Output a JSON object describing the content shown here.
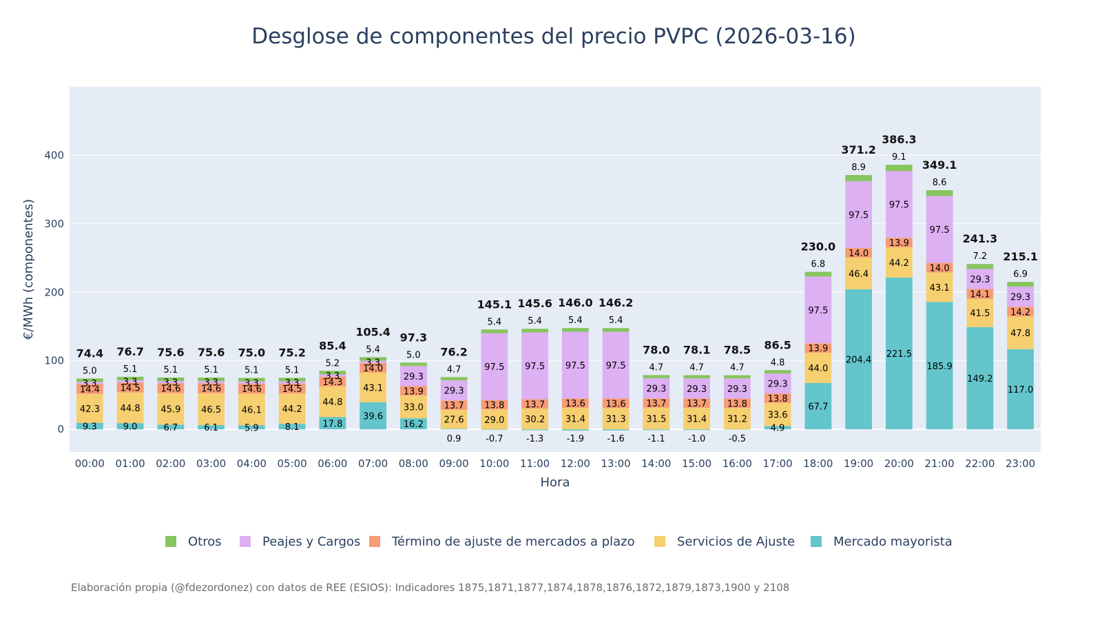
{
  "chart_data": {
    "type": "bar",
    "stacked": true,
    "title": "Desglose de componentes del precio PVPC (2026-03-16)",
    "xlabel": "Hora",
    "ylabel": "€/MWh (componentes)",
    "ylim": [
      -33,
      500
    ],
    "yticks": [
      0,
      100,
      200,
      300,
      400
    ],
    "ytick_labels": [
      "0",
      "100",
      "200",
      "300",
      "400"
    ],
    "categories": [
      "00:00",
      "01:00",
      "02:00",
      "03:00",
      "04:00",
      "05:00",
      "06:00",
      "07:00",
      "08:00",
      "09:00",
      "10:00",
      "11:00",
      "12:00",
      "13:00",
      "14:00",
      "15:00",
      "16:00",
      "17:00",
      "18:00",
      "19:00",
      "20:00",
      "21:00",
      "22:00",
      "23:00"
    ],
    "series": [
      {
        "name": "Mercado mayorista",
        "color": "#64c5cc",
        "values": [
          9.3,
          9.0,
          6.7,
          6.1,
          5.9,
          8.1,
          17.8,
          39.6,
          16.2,
          0.9,
          -0.7,
          -1.3,
          -1.9,
          -1.6,
          -1.1,
          -1.0,
          -0.5,
          4.9,
          67.7,
          204.4,
          221.5,
          185.9,
          149.2,
          117.0
        ]
      },
      {
        "name": "Servicios de Ajuste",
        "color": "#f6cf71",
        "values": [
          42.3,
          44.8,
          45.9,
          46.5,
          46.1,
          44.2,
          44.8,
          43.1,
          33.0,
          27.6,
          29.0,
          30.2,
          31.4,
          31.3,
          31.5,
          31.4,
          31.2,
          33.6,
          44.0,
          46.4,
          44.2,
          43.1,
          41.5,
          47.8
        ]
      },
      {
        "name": "Término de ajuste de mercados a plazo",
        "color": "#f89c74",
        "values": [
          14.4,
          14.5,
          14.6,
          14.6,
          14.6,
          14.5,
          14.3,
          14.0,
          13.9,
          13.7,
          13.8,
          13.7,
          13.6,
          13.6,
          13.7,
          13.7,
          13.8,
          13.8,
          13.9,
          14.0,
          13.9,
          14.0,
          14.1,
          14.2
        ]
      },
      {
        "name": "Peajes y Cargos",
        "color": "#dcb0f2",
        "values": [
          3.3,
          3.3,
          3.3,
          3.3,
          3.3,
          3.3,
          3.3,
          3.3,
          29.3,
          29.3,
          97.5,
          97.5,
          97.5,
          97.5,
          29.3,
          29.3,
          29.3,
          29.3,
          97.5,
          97.5,
          97.5,
          97.5,
          29.3,
          29.3
        ]
      },
      {
        "name": "Otros",
        "color": "#87c55f",
        "values": [
          5.0,
          5.1,
          5.1,
          5.1,
          5.1,
          5.1,
          5.2,
          5.4,
          5.0,
          4.7,
          5.4,
          5.4,
          5.4,
          5.4,
          4.7,
          4.7,
          4.7,
          4.8,
          6.8,
          8.9,
          9.1,
          8.6,
          7.2,
          6.9
        ]
      }
    ],
    "segment_labels": [
      [
        "9.3",
        "9.0",
        "6.7",
        "6.1",
        "5.9",
        "8.1",
        "17.8",
        "39.6",
        "16.2",
        "0.9",
        "-0.7",
        "-1.3",
        "-1.9",
        "-1.6",
        "-1.1",
        "-1.0",
        "-0.5",
        "4.9",
        "67.7",
        "204.4",
        "221.5",
        "185.9",
        "149.2",
        "117.0"
      ],
      [
        "42.3",
        "44.8",
        "45.9",
        "46.5",
        "46.1",
        "44.2",
        "44.8",
        "43.1",
        "33.0",
        "27.6",
        "29.0",
        "30.2",
        "31.4",
        "31.3",
        "31.5",
        "31.4",
        "31.2",
        "33.6",
        "44.0",
        "46.4",
        "44.2",
        "43.1",
        "41.5",
        "47.8"
      ],
      [
        "14.4",
        "14.5",
        "14.6",
        "14.6",
        "14.6",
        "14.5",
        "14.3",
        "14.0",
        "13.9",
        "13.7",
        "13.8",
        "13.7",
        "13.6",
        "13.6",
        "13.7",
        "13.7",
        "13.8",
        "13.8",
        "13.9",
        "14.0",
        "13.9",
        "14.0",
        "14.1",
        "14.2"
      ],
      [
        "3.3",
        "3.3",
        "3.3",
        "3.3",
        "3.3",
        "3.3",
        "3.3",
        "3.3",
        "29.3",
        "29.3",
        "97.5",
        "97.5",
        "97.5",
        "97.5",
        "29.3",
        "29.3",
        "29.3",
        "29.3",
        "97.5",
        "97.5",
        "97.5",
        "97.5",
        "29.3",
        "29.3"
      ],
      [
        "5.0",
        "5.1",
        "5.1",
        "5.1",
        "5.1",
        "5.1",
        "5.2",
        "5.4",
        "5.0",
        "4.7",
        "5.4",
        "5.4",
        "5.4",
        "5.4",
        "4.7",
        "4.7",
        "4.7",
        "4.8",
        "6.8",
        "8.9",
        "9.1",
        "8.6",
        "7.2",
        "6.9"
      ]
    ],
    "totals": [
      74.4,
      76.7,
      75.6,
      75.6,
      75.0,
      75.2,
      85.4,
      105.4,
      97.3,
      76.2,
      145.1,
      145.6,
      146.0,
      146.2,
      78.0,
      78.1,
      78.5,
      86.5,
      230.0,
      371.2,
      386.3,
      349.1,
      241.3,
      215.1
    ],
    "total_labels": [
      "74.4",
      "76.7",
      "75.6",
      "75.6",
      "75.0",
      "75.2",
      "85.4",
      "105.4",
      "97.3",
      "76.2",
      "145.1",
      "145.6",
      "146.0",
      "146.2",
      "78.0",
      "78.1",
      "78.5",
      "86.5",
      "230.0",
      "371.2",
      "386.3",
      "349.1",
      "241.3",
      "215.1"
    ],
    "legend_order": [
      "Otros",
      "Peajes y Cargos",
      "Término de ajuste de mercados a plazo",
      "Servicios de Ajuste",
      "Mercado mayorista"
    ],
    "legend_position": "bottom-center",
    "grid": true
  },
  "caption": "Elaboración propia (@fdezordonez) con datos de REE (ESIOS): Indicadores 1875,1871,1877,1874,1878,1876,1872,1879,1873,1900 y 2108",
  "colors": {
    "plot_background": "#e5ecf6",
    "grid": "#ffffff",
    "text": "#2a3f5f"
  }
}
